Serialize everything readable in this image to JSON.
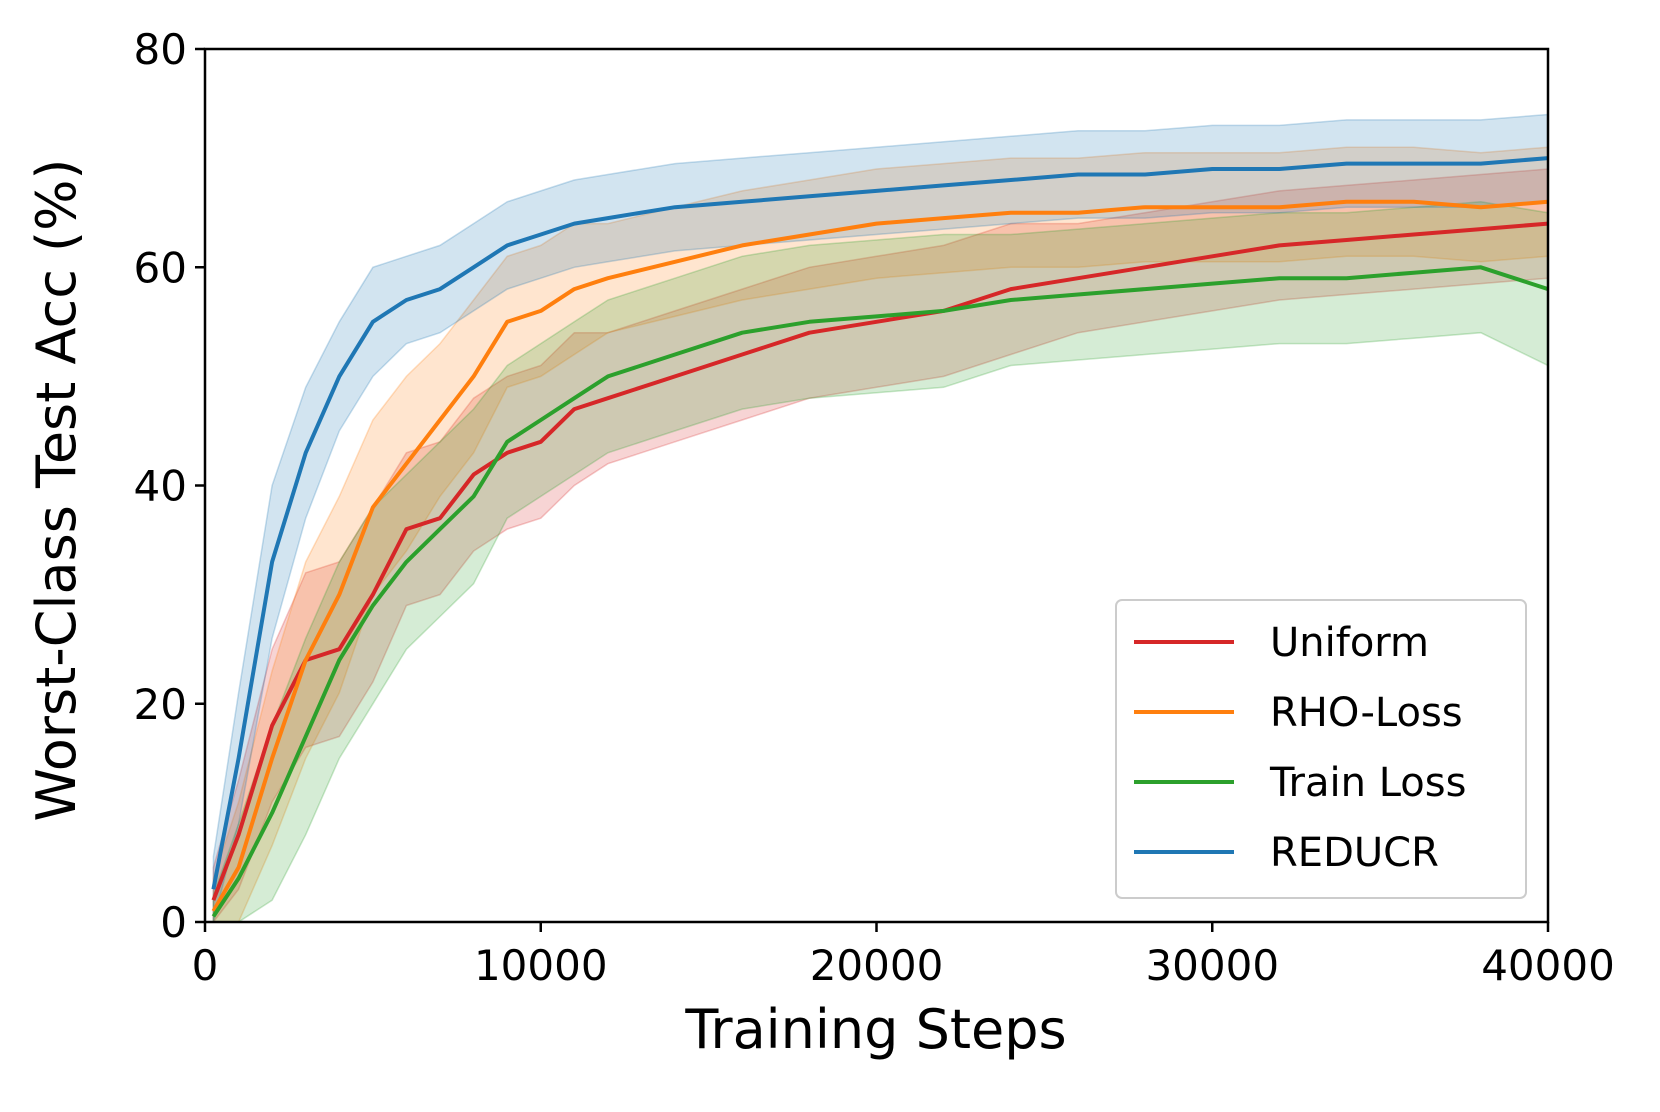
{
  "chart_data": {
    "type": "line",
    "title": "",
    "xlabel": "Training Steps",
    "ylabel": "Worst-Class Test Acc (%)",
    "xlim": [
      0,
      40000
    ],
    "ylim": [
      0,
      80
    ],
    "xticks": [
      0,
      10000,
      20000,
      30000,
      40000
    ],
    "yticks": [
      0,
      20,
      40,
      60,
      80
    ],
    "grid": false,
    "legend_position": "lower-right",
    "shaded_band": "variability band around each series",
    "series": [
      {
        "name": "Uniform",
        "color": "#d62728",
        "x": [
          250,
          1000,
          2000,
          3000,
          4000,
          5000,
          6000,
          7000,
          8000,
          9000,
          10000,
          11000,
          12000,
          14000,
          16000,
          18000,
          20000,
          22000,
          24000,
          26000,
          28000,
          30000,
          32000,
          34000,
          36000,
          38000,
          40000
        ],
        "y": [
          2,
          8,
          18,
          24,
          25,
          30,
          36,
          37,
          41,
          43,
          44,
          47,
          48,
          50,
          52,
          54,
          55,
          56,
          58,
          59,
          60,
          61,
          62,
          62.5,
          63,
          63.5,
          64
        ],
        "band": [
          3,
          5,
          7,
          8,
          8,
          8,
          7,
          7,
          7,
          7,
          7,
          7,
          6,
          6,
          6,
          6,
          6,
          6,
          6,
          5,
          5,
          5,
          5,
          5,
          5,
          5,
          5
        ]
      },
      {
        "name": "RHO-Loss",
        "color": "#ff7f0e",
        "x": [
          250,
          1000,
          2000,
          3000,
          4000,
          5000,
          6000,
          7000,
          8000,
          9000,
          10000,
          11000,
          12000,
          14000,
          16000,
          18000,
          20000,
          22000,
          24000,
          26000,
          28000,
          30000,
          32000,
          34000,
          36000,
          38000,
          40000
        ],
        "y": [
          1,
          5,
          15,
          24,
          30,
          38,
          42,
          46,
          50,
          55,
          56,
          58,
          59,
          60.5,
          62,
          63,
          64,
          64.5,
          65,
          65,
          65.5,
          65.5,
          65.5,
          66,
          66,
          65.5,
          66
        ],
        "band": [
          3,
          6,
          8,
          9,
          9,
          8,
          8,
          7,
          7,
          6,
          6,
          6,
          5,
          5,
          5,
          5,
          5,
          5,
          5,
          5,
          5,
          5,
          5,
          5,
          5,
          5,
          5
        ]
      },
      {
        "name": "Train Loss",
        "color": "#2ca02c",
        "x": [
          250,
          1000,
          2000,
          3000,
          4000,
          5000,
          6000,
          7000,
          8000,
          9000,
          10000,
          11000,
          12000,
          14000,
          16000,
          18000,
          20000,
          22000,
          24000,
          26000,
          28000,
          30000,
          32000,
          34000,
          36000,
          38000,
          40000
        ],
        "y": [
          0.5,
          4,
          10,
          17,
          24,
          29,
          33,
          36,
          39,
          44,
          46,
          48,
          50,
          52,
          54,
          55,
          55.5,
          56,
          57,
          57.5,
          58,
          58.5,
          59,
          59,
          59.5,
          60,
          58
        ],
        "band": [
          2,
          5,
          8,
          9,
          9,
          9,
          8,
          8,
          8,
          7,
          7,
          7,
          7,
          7,
          7,
          7,
          7,
          7,
          6,
          6,
          6,
          6,
          6,
          6,
          6,
          6,
          7
        ]
      },
      {
        "name": "REDUCR",
        "color": "#1f77b4",
        "x": [
          250,
          1000,
          2000,
          3000,
          4000,
          5000,
          6000,
          7000,
          8000,
          9000,
          10000,
          11000,
          12000,
          14000,
          16000,
          18000,
          20000,
          22000,
          24000,
          26000,
          28000,
          30000,
          32000,
          34000,
          36000,
          38000,
          40000
        ],
        "y": [
          3,
          15,
          33,
          43,
          50,
          55,
          57,
          58,
          60,
          62,
          63,
          64,
          64.5,
          65.5,
          66,
          66.5,
          67,
          67.5,
          68,
          68.5,
          68.5,
          69,
          69,
          69.5,
          69.5,
          69.5,
          70
        ],
        "band": [
          3,
          6,
          7,
          6,
          5,
          5,
          4,
          4,
          4,
          4,
          4,
          4,
          4,
          4,
          4,
          4,
          4,
          4,
          4,
          4,
          4,
          4,
          4,
          4,
          4,
          4,
          4
        ]
      }
    ]
  }
}
